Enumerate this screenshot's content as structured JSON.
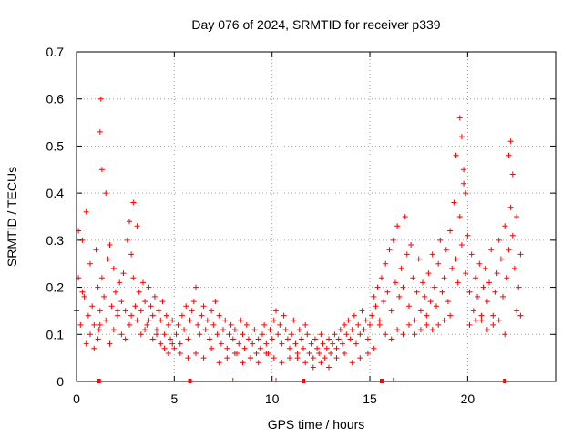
{
  "chart_data": {
    "type": "scatter",
    "title": "Day 076 of 2024, SRMTID for receiver p339",
    "xlabel": "GPS time / hours",
    "ylabel": "SRMTID / TECUs",
    "xlim": [
      0,
      24.5
    ],
    "ylim": [
      0,
      0.7
    ],
    "xticks": [
      0,
      5,
      10,
      15,
      20
    ],
    "xtick_labels": [
      "0",
      "5",
      "10",
      "15",
      "20"
    ],
    "yticks": [
      0,
      0.1,
      0.2,
      0.3,
      0.4,
      0.5,
      0.6,
      0.7
    ],
    "ytick_labels": [
      "0",
      "0.1",
      "0.2",
      "0.3",
      "0.4",
      "0.5",
      "0.6",
      "0.7"
    ],
    "grid": true,
    "marker": "+",
    "series_color": "#ff0000",
    "bottom_markers_x": [
      1.15,
      5.8,
      11.6,
      15.6,
      21.9
    ],
    "bottom_ticks_x": [
      8.0,
      10.2,
      16.2
    ],
    "series": [
      {
        "name": "SRMTID",
        "x": [
          0.0,
          0.1,
          0.2,
          0.3,
          0.4,
          0.5,
          0.6,
          0.7,
          0.8,
          0.9,
          1.0,
          1.1,
          1.2,
          1.3,
          1.4,
          1.5,
          1.6,
          1.7,
          1.8,
          1.9,
          2.0,
          2.1,
          2.2,
          2.3,
          2.4,
          2.5,
          2.6,
          2.7,
          2.8,
          2.9,
          3.0,
          3.1,
          3.2,
          3.3,
          3.4,
          3.5,
          3.6,
          3.7,
          3.8,
          3.9,
          4.0,
          4.1,
          4.2,
          4.3,
          4.4,
          4.5,
          4.6,
          4.7,
          4.8,
          4.9,
          5.0,
          5.1,
          5.2,
          5.3,
          5.4,
          5.5,
          5.6,
          5.7,
          5.8,
          5.9,
          6.0,
          6.1,
          6.2,
          6.3,
          6.4,
          6.5,
          6.6,
          6.7,
          6.8,
          6.9,
          7.0,
          7.1,
          7.2,
          7.3,
          7.4,
          7.5,
          7.6,
          7.7,
          7.8,
          7.9,
          8.0,
          8.1,
          8.2,
          8.3,
          8.4,
          8.5,
          8.6,
          8.7,
          8.8,
          8.9,
          9.0,
          9.1,
          9.2,
          9.3,
          9.4,
          9.5,
          9.6,
          9.7,
          9.8,
          9.9,
          10.0,
          10.1,
          10.2,
          10.3,
          10.4,
          10.5,
          10.6,
          10.7,
          10.8,
          10.9,
          11.0,
          11.1,
          11.2,
          11.3,
          11.4,
          11.5,
          11.6,
          11.7,
          11.8,
          11.9,
          12.0,
          12.1,
          12.2,
          12.3,
          12.4,
          12.5,
          12.6,
          12.7,
          12.8,
          12.9,
          13.0,
          13.1,
          13.2,
          13.3,
          13.4,
          13.5,
          13.6,
          13.7,
          13.8,
          13.9,
          14.0,
          14.1,
          14.2,
          14.3,
          14.4,
          14.5,
          14.6,
          14.7,
          14.8,
          14.9,
          15.0,
          15.1,
          15.2,
          15.3,
          15.4,
          15.5,
          15.6,
          15.7,
          15.8,
          15.9,
          16.0,
          16.1,
          16.2,
          16.3,
          16.4,
          16.5,
          16.6,
          16.7,
          16.8,
          16.9,
          17.0,
          17.1,
          17.2,
          17.3,
          17.4,
          17.5,
          17.6,
          17.7,
          17.8,
          17.9,
          18.0,
          18.1,
          18.2,
          18.3,
          18.4,
          18.5,
          18.6,
          18.7,
          18.8,
          18.9,
          19.0,
          19.1,
          19.2,
          19.3,
          19.4,
          19.5,
          19.6,
          19.7,
          19.8,
          19.9,
          20.0,
          20.1,
          20.2,
          20.3,
          20.4,
          20.5,
          20.6,
          20.7,
          20.8,
          20.9,
          21.0,
          21.1,
          21.2,
          21.3,
          21.4,
          21.5,
          21.6,
          21.7,
          21.8,
          21.9,
          22.0,
          22.1,
          22.2,
          22.3,
          22.4,
          22.5,
          22.6,
          22.7,
          0.1,
          0.3,
          0.5,
          0.7,
          0.9,
          1.1,
          1.15,
          1.2,
          1.25,
          1.2,
          1.3,
          1.5,
          1.7,
          1.9,
          2.1,
          2.3,
          2.5,
          2.7,
          2.8,
          2.9,
          3.1,
          3.3,
          3.5,
          3.7,
          3.9,
          4.1,
          4.3,
          4.5,
          4.7,
          4.9,
          5.3,
          5.7,
          6.1,
          6.5,
          6.9,
          7.3,
          7.7,
          8.1,
          8.5,
          8.9,
          9.3,
          9.7,
          10.1,
          10.5,
          10.9,
          11.3,
          11.7,
          12.1,
          12.5,
          12.9,
          13.3,
          13.7,
          14.1,
          14.5,
          14.9,
          15.2,
          15.5,
          15.8,
          16.1,
          16.4,
          16.7,
          17.0,
          17.3,
          17.6,
          17.9,
          18.2,
          18.5,
          18.8,
          19.1,
          19.4,
          19.6,
          19.7,
          19.8,
          19.9,
          20.1,
          20.4,
          20.7,
          21.0,
          21.3,
          21.6,
          21.9,
          22.1,
          22.2,
          22.3,
          22.5,
          22.7
        ],
        "y": [
          0.15,
          0.22,
          0.12,
          0.3,
          0.18,
          0.36,
          0.14,
          0.25,
          0.16,
          0.12,
          0.28,
          0.2,
          0.15,
          0.22,
          0.18,
          0.13,
          0.26,
          0.29,
          0.16,
          0.24,
          0.19,
          0.14,
          0.21,
          0.17,
          0.23,
          0.15,
          0.3,
          0.34,
          0.27,
          0.22,
          0.16,
          0.13,
          0.19,
          0.15,
          0.21,
          0.17,
          0.12,
          0.2,
          0.16,
          0.14,
          0.18,
          0.11,
          0.15,
          0.13,
          0.17,
          0.1,
          0.14,
          0.12,
          0.09,
          0.13,
          0.07,
          0.1,
          0.12,
          0.08,
          0.14,
          0.11,
          0.16,
          0.09,
          0.13,
          0.15,
          0.17,
          0.2,
          0.12,
          0.1,
          0.14,
          0.16,
          0.11,
          0.13,
          0.09,
          0.15,
          0.12,
          0.17,
          0.1,
          0.14,
          0.08,
          0.11,
          0.13,
          0.07,
          0.1,
          0.12,
          0.09,
          0.11,
          0.06,
          0.08,
          0.13,
          0.1,
          0.07,
          0.12,
          0.09,
          0.05,
          0.08,
          0.11,
          0.06,
          0.09,
          0.07,
          0.1,
          0.12,
          0.08,
          0.06,
          0.11,
          0.09,
          0.13,
          0.15,
          0.1,
          0.12,
          0.08,
          0.14,
          0.11,
          0.09,
          0.07,
          0.1,
          0.13,
          0.08,
          0.06,
          0.11,
          0.09,
          0.07,
          0.12,
          0.1,
          0.06,
          0.08,
          0.05,
          0.09,
          0.07,
          0.06,
          0.1,
          0.08,
          0.05,
          0.07,
          0.09,
          0.06,
          0.08,
          0.1,
          0.07,
          0.09,
          0.11,
          0.08,
          0.12,
          0.1,
          0.13,
          0.09,
          0.11,
          0.14,
          0.08,
          0.12,
          0.1,
          0.15,
          0.11,
          0.13,
          0.09,
          0.12,
          0.14,
          0.18,
          0.16,
          0.2,
          0.13,
          0.22,
          0.17,
          0.25,
          0.19,
          0.28,
          0.15,
          0.3,
          0.21,
          0.33,
          0.18,
          0.24,
          0.2,
          0.35,
          0.27,
          0.16,
          0.29,
          0.22,
          0.13,
          0.19,
          0.26,
          0.15,
          0.21,
          0.18,
          0.14,
          0.23,
          0.17,
          0.27,
          0.2,
          0.16,
          0.25,
          0.3,
          0.19,
          0.22,
          0.28,
          0.17,
          0.32,
          0.24,
          0.38,
          0.26,
          0.21,
          0.35,
          0.29,
          0.42,
          0.23,
          0.31,
          0.19,
          0.27,
          0.15,
          0.22,
          0.18,
          0.25,
          0.13,
          0.2,
          0.24,
          0.17,
          0.21,
          0.28,
          0.14,
          0.19,
          0.23,
          0.3,
          0.26,
          0.18,
          0.33,
          0.22,
          0.28,
          0.37,
          0.31,
          0.24,
          0.35,
          0.2,
          0.27,
          0.32,
          0.19,
          0.08,
          0.1,
          0.07,
          0.09,
          0.11,
          0.12,
          0.6,
          0.53,
          0.45,
          0.4,
          0.08,
          0.11,
          0.15,
          0.1,
          0.09,
          0.12,
          0.14,
          0.38,
          0.33,
          0.1,
          0.11,
          0.13,
          0.09,
          0.1,
          0.08,
          0.07,
          0.06,
          0.08,
          0.06,
          0.05,
          0.06,
          0.05,
          0.07,
          0.04,
          0.05,
          0.06,
          0.04,
          0.05,
          0.04,
          0.06,
          0.05,
          0.04,
          0.05,
          0.05,
          0.04,
          0.03,
          0.04,
          0.03,
          0.05,
          0.06,
          0.04,
          0.05,
          0.06,
          0.07,
          0.12,
          0.1,
          0.09,
          0.11,
          0.1,
          0.12,
          0.1,
          0.11,
          0.12,
          0.11,
          0.12,
          0.13,
          0.14,
          0.48,
          0.56,
          0.52,
          0.45,
          0.4,
          0.12,
          0.13,
          0.14,
          0.11,
          0.12,
          0.13,
          0.1,
          0.48,
          0.51,
          0.44,
          0.15,
          0.14
        ]
      }
    ]
  }
}
